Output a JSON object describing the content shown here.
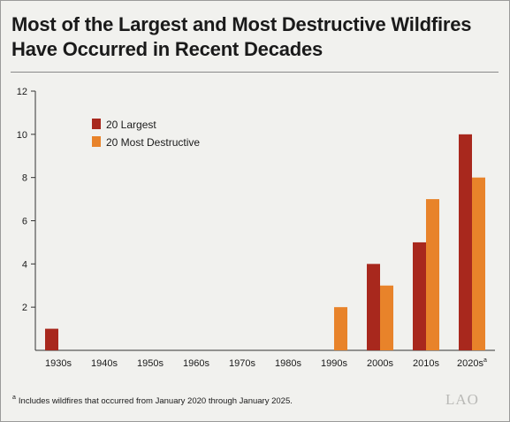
{
  "title_line1": "Most of the Largest and Most Destructive Wildfires",
  "title_line2": "Have Occurred in Recent Decades",
  "footnote_marker": "a",
  "footnote_text": "Includes wildfires that occurred from January 2020 through January 2025.",
  "logo_text": "LAO",
  "chart_data": {
    "type": "bar",
    "categories": [
      "1930s",
      "1940s",
      "1950s",
      "1960s",
      "1970s",
      "1980s",
      "1990s",
      "2000s",
      "2010s",
      "2020s"
    ],
    "category_superscripts": [
      "",
      "",
      "",
      "",
      "",
      "",
      "",
      "",
      "",
      "a"
    ],
    "series": [
      {
        "name": "20 Largest",
        "color": "#a8281d",
        "values": [
          1,
          0,
          0,
          0,
          0,
          0,
          0,
          4,
          5,
          10
        ]
      },
      {
        "name": "20 Most Destructive",
        "color": "#e8832a",
        "values": [
          0,
          0,
          0,
          0,
          0,
          0,
          2,
          3,
          7,
          8
        ]
      }
    ],
    "ylim": [
      0,
      12
    ],
    "yticks": [
      2,
      4,
      6,
      8,
      10,
      12
    ],
    "y_top_label": "12",
    "legend_position": "top-left",
    "grid": false,
    "xlabel": "",
    "ylabel": ""
  }
}
